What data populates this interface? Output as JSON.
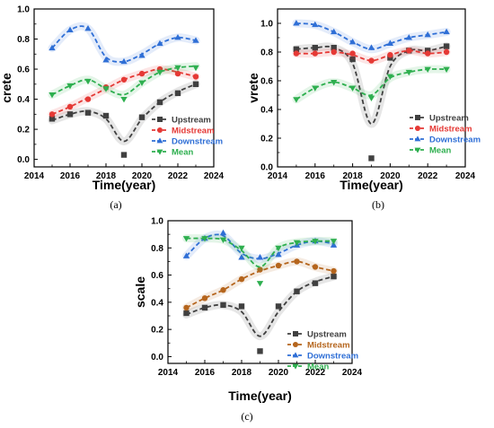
{
  "captions": [
    "(a)",
    "(b)",
    "(c)"
  ],
  "chart_data": [
    {
      "type": "line",
      "panel": "(a)",
      "xlabel": "Time(year)",
      "ylabel": "crete",
      "xlim": [
        2014,
        2024
      ],
      "ylim": [
        -0.05,
        1.0
      ],
      "xticks": [
        2014,
        2016,
        2018,
        2020,
        2022,
        2024
      ],
      "yticks": [
        0.0,
        0.2,
        0.4,
        0.6,
        0.8,
        1.0
      ],
      "xticklabels": [
        "2014",
        "2016",
        "2018",
        "2020",
        "2022",
        "2024"
      ],
      "yticklabels": [
        "0.0",
        "0.2",
        "0.4",
        "0.6",
        "0.8",
        "1.0"
      ],
      "legend_position": "lower-right",
      "x": [
        2015,
        2016,
        2017,
        2018,
        2019,
        2020,
        2021,
        2022,
        2023
      ],
      "series": [
        {
          "name": "Upstream",
          "color": "#404040",
          "marker": "square",
          "values": [
            0.27,
            0.3,
            0.31,
            0.29,
            0.03,
            0.28,
            0.38,
            0.44,
            0.5
          ],
          "fit": [
            0.26,
            0.3,
            0.32,
            0.27,
            0.12,
            0.27,
            0.38,
            0.45,
            0.5
          ]
        },
        {
          "name": "Midstream",
          "color": "#e53935",
          "marker": "circle",
          "values": [
            0.3,
            0.35,
            0.4,
            0.48,
            0.53,
            0.57,
            0.6,
            0.57,
            0.55
          ],
          "fit": [
            0.3,
            0.35,
            0.41,
            0.47,
            0.53,
            0.57,
            0.6,
            0.58,
            0.55
          ]
        },
        {
          "name": "Downstream",
          "color": "#2f6fd6",
          "marker": "triangle-up",
          "values": [
            0.74,
            0.86,
            0.87,
            0.66,
            0.65,
            0.69,
            0.77,
            0.81,
            0.79
          ],
          "fit": [
            0.74,
            0.86,
            0.87,
            0.68,
            0.65,
            0.7,
            0.77,
            0.81,
            0.79
          ]
        },
        {
          "name": "Mean",
          "color": "#2eaf4f",
          "marker": "triangle-down",
          "values": [
            0.43,
            0.49,
            0.52,
            0.47,
            0.4,
            0.51,
            0.58,
            0.61,
            0.61
          ],
          "fit": [
            0.43,
            0.49,
            0.53,
            0.47,
            0.43,
            0.51,
            0.58,
            0.61,
            0.62
          ]
        }
      ]
    },
    {
      "type": "line",
      "panel": "(b)",
      "xlabel": "Time(year)",
      "ylabel": "vrete",
      "xlim": [
        2014,
        2024
      ],
      "ylim": [
        0.0,
        1.1
      ],
      "xticks": [
        2014,
        2016,
        2018,
        2020,
        2022,
        2024
      ],
      "yticks": [
        0.0,
        0.2,
        0.4,
        0.6,
        0.8,
        1.0
      ],
      "xticklabels": [
        "2014",
        "2016",
        "2018",
        "2020",
        "2022",
        "2024"
      ],
      "yticklabels": [
        "0.0",
        "0.2",
        "0.4",
        "0.6",
        "0.8",
        "1.0"
      ],
      "legend_position": "lower-right",
      "x": [
        2015,
        2016,
        2017,
        2018,
        2019,
        2020,
        2021,
        2022,
        2023
      ],
      "series": [
        {
          "name": "Upstream",
          "color": "#404040",
          "marker": "square",
          "values": [
            0.82,
            0.83,
            0.83,
            0.75,
            0.06,
            0.76,
            0.81,
            0.81,
            0.84
          ],
          "fit": [
            0.82,
            0.83,
            0.83,
            0.72,
            0.3,
            0.7,
            0.81,
            0.81,
            0.84
          ]
        },
        {
          "name": "Midstream",
          "color": "#e53935",
          "marker": "circle",
          "values": [
            0.79,
            0.79,
            0.8,
            0.79,
            0.74,
            0.78,
            0.81,
            0.79,
            0.8
          ],
          "fit": [
            0.79,
            0.79,
            0.8,
            0.78,
            0.74,
            0.78,
            0.81,
            0.79,
            0.8
          ]
        },
        {
          "name": "Downstream",
          "color": "#2f6fd6",
          "marker": "triangle-up",
          "values": [
            1.0,
            0.99,
            0.94,
            0.87,
            0.83,
            0.86,
            0.9,
            0.92,
            0.94
          ],
          "fit": [
            1.0,
            0.99,
            0.94,
            0.87,
            0.82,
            0.86,
            0.9,
            0.92,
            0.94
          ]
        },
        {
          "name": "Mean",
          "color": "#2eaf4f",
          "marker": "triangle-down",
          "values": [
            0.47,
            0.55,
            0.59,
            0.55,
            0.48,
            0.63,
            0.66,
            0.68,
            0.68
          ],
          "fit": [
            0.47,
            0.55,
            0.59,
            0.55,
            0.5,
            0.62,
            0.66,
            0.68,
            0.68
          ]
        }
      ]
    },
    {
      "type": "line",
      "panel": "(c)",
      "xlabel": "Time(year)",
      "ylabel": "scale",
      "xlim": [
        2014,
        2024
      ],
      "ylim": [
        -0.05,
        1.0
      ],
      "xticks": [
        2014,
        2016,
        2018,
        2020,
        2022,
        2024
      ],
      "yticks": [
        0.0,
        0.2,
        0.4,
        0.6,
        0.8,
        1.0
      ],
      "xticklabels": [
        "2014",
        "2016",
        "2018",
        "2020",
        "2022",
        "2024"
      ],
      "yticklabels": [
        "0.0",
        "0.2",
        "0.4",
        "0.6",
        "0.8",
        "1.0"
      ],
      "legend_position": "lower-right",
      "x": [
        2015,
        2016,
        2017,
        2018,
        2019,
        2020,
        2021,
        2022,
        2023
      ],
      "series": [
        {
          "name": "Upstream",
          "color": "#404040",
          "marker": "square",
          "values": [
            0.32,
            0.36,
            0.38,
            0.37,
            0.04,
            0.37,
            0.48,
            0.54,
            0.59
          ],
          "fit": [
            0.31,
            0.36,
            0.38,
            0.33,
            0.15,
            0.33,
            0.48,
            0.55,
            0.59
          ]
        },
        {
          "name": "Midstream",
          "color": "#b5651d",
          "marker": "circle",
          "values": [
            0.36,
            0.43,
            0.49,
            0.57,
            0.64,
            0.67,
            0.7,
            0.66,
            0.63
          ],
          "fit": [
            0.36,
            0.43,
            0.49,
            0.57,
            0.63,
            0.67,
            0.7,
            0.66,
            0.63
          ]
        },
        {
          "name": "Downstream",
          "color": "#2f6fd6",
          "marker": "triangle-up",
          "values": [
            0.74,
            0.87,
            0.91,
            0.73,
            0.73,
            0.75,
            0.82,
            0.85,
            0.82
          ],
          "fit": [
            0.74,
            0.87,
            0.89,
            0.76,
            0.72,
            0.76,
            0.82,
            0.85,
            0.83
          ]
        },
        {
          "name": "Mean",
          "color": "#2eaf4f",
          "marker": "triangle-down",
          "values": [
            0.87,
            0.87,
            0.86,
            0.8,
            0.54,
            0.8,
            0.84,
            0.85,
            0.85
          ],
          "fit": [
            0.87,
            0.87,
            0.86,
            0.78,
            0.66,
            0.8,
            0.84,
            0.85,
            0.85
          ]
        }
      ]
    }
  ]
}
